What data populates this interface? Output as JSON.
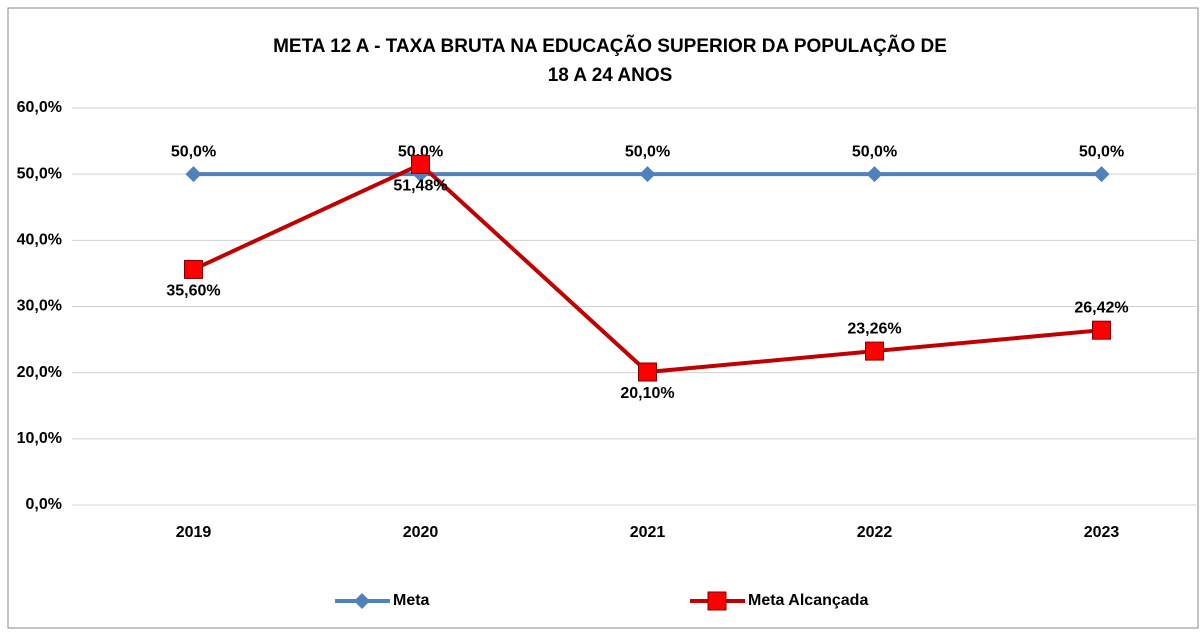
{
  "chart_data": {
    "type": "line",
    "title": [
      "META 12 A - TAXA BRUTA NA EDUCAÇÃO SUPERIOR DA POPULAÇÃO DE",
      "18 A 24 ANOS"
    ],
    "categories": [
      "2019",
      "2020",
      "2021",
      "2022",
      "2023"
    ],
    "series": [
      {
        "name": "Meta",
        "color": "#4f81bd",
        "marker": "diamond",
        "values": [
          50,
          50,
          50,
          50,
          50
        ],
        "value_labels": [
          "50,0%",
          "50,0%",
          "50,0%",
          "50,0%",
          "50,0%"
        ]
      },
      {
        "name": "Meta Alcançada",
        "color": "#c00000",
        "marker": "square",
        "marker_color": "#ff0000",
        "values": [
          35.6,
          51.48,
          20.1,
          23.26,
          26.42
        ],
        "value_labels": [
          "35,60%",
          "51,48%",
          "20,10%",
          "23,26%",
          "26,42%"
        ]
      }
    ],
    "ylim": [
      0,
      60
    ],
    "yticks": [
      {
        "value": 0,
        "label": "0,0%"
      },
      {
        "value": 10,
        "label": "10,0%"
      },
      {
        "value": 20,
        "label": "20,0%"
      },
      {
        "value": 30,
        "label": "30,0%"
      },
      {
        "value": 40,
        "label": "40,0%"
      },
      {
        "value": 50,
        "label": "50,0%"
      },
      {
        "value": 60,
        "label": "60,0%"
      }
    ],
    "grid": true,
    "legend": "bottom"
  }
}
